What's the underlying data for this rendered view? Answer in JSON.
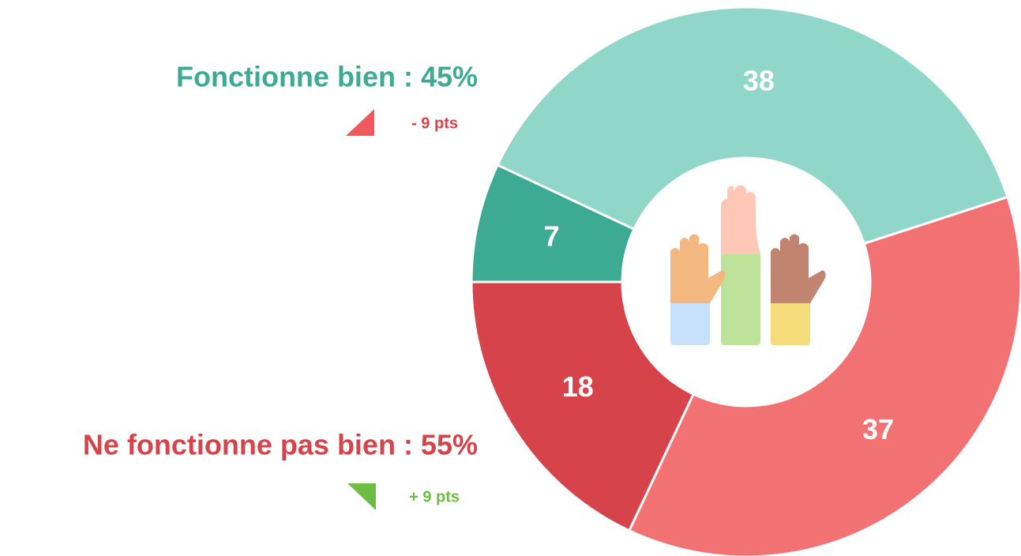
{
  "chart_data": {
    "type": "donut",
    "values": [
      7,
      38,
      37,
      18
    ],
    "colors": [
      "#3daa94",
      "#91d7c9",
      "#f27274",
      "#d6434a"
    ],
    "label_color": "#ffffff",
    "annotations": [
      {
        "text": "Fonctionne bien : 45%",
        "color": "#3daa94",
        "change": "- 9 pts",
        "change_color": "#d6434a",
        "arrow_color": "#f05a5f"
      },
      {
        "text": "Ne fonctionne pas bien : 55%",
        "color": "#d6434a",
        "change": "+ 9 pts",
        "change_color": "#6dbd45",
        "arrow_color": "#6dbd45"
      }
    ]
  }
}
